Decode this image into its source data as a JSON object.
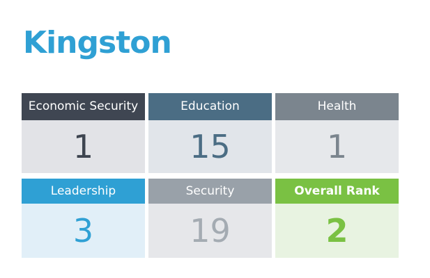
{
  "title": "Kingston",
  "cards": [
    {
      "label": "Economic Security",
      "value": "1",
      "header_color": "#3f4652",
      "body_color": "#e2e3e7",
      "value_color": "#3e4550"
    },
    {
      "label": "Education",
      "value": "15",
      "header_color": "#4b6d84",
      "body_color": "#e1e5ea",
      "value_color": "#4b6d84"
    },
    {
      "label": "Health",
      "value": "1",
      "header_color": "#7b858e",
      "body_color": "#e6e8eb",
      "value_color": "#7b858e"
    },
    {
      "label": "Leadership",
      "value": "3",
      "header_color": "#2fa0d4",
      "body_color": "#e1eff8",
      "value_color": "#2fa0d4"
    },
    {
      "label": "Security",
      "value": "19",
      "header_color": "#99a1a9",
      "body_color": "#e6e7ea",
      "value_color": "#a4abb2"
    },
    {
      "label": "Overall Rank",
      "value": "2",
      "header_color": "#7ac143",
      "body_color": "#e8f3e1",
      "value_color": "#7ac143"
    }
  ]
}
